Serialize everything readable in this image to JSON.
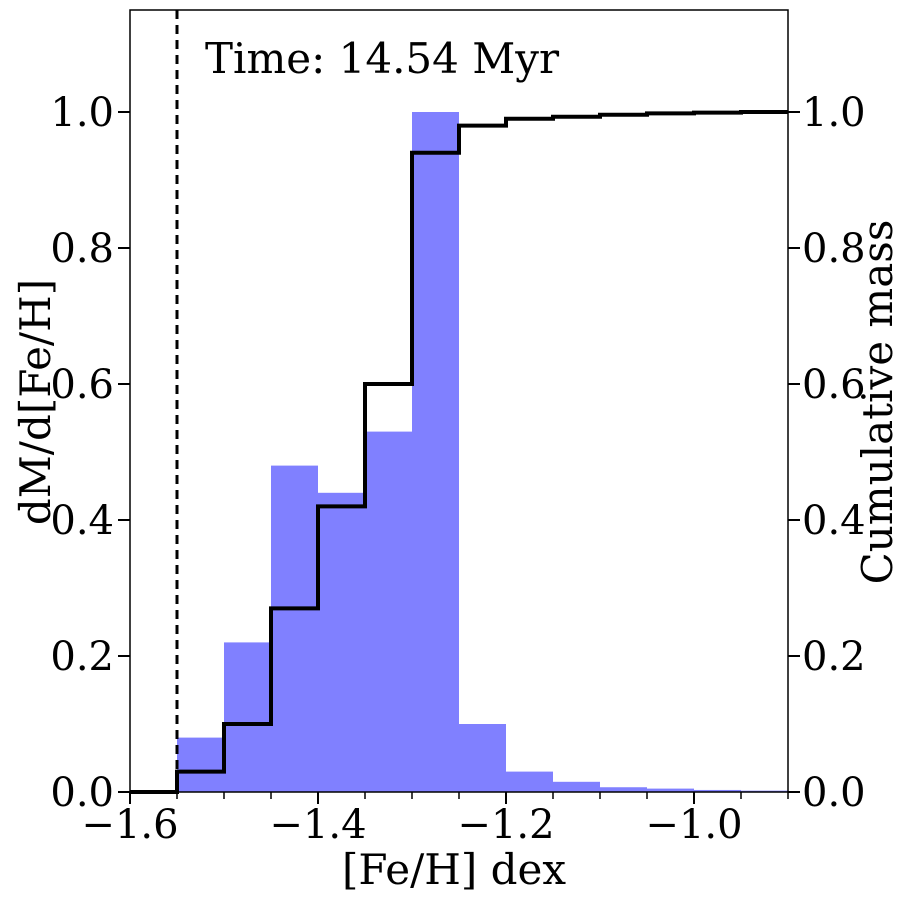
{
  "chart_data": {
    "type": "bar",
    "annotation": "Time: 14.54 Myr",
    "xlabel": "[Fe/H] dex",
    "ylabel": "dM/d[Fe/H]",
    "y2label": "Cumulative mass",
    "xlim": [
      -1.6,
      -0.9
    ],
    "ylim": [
      0,
      1.15
    ],
    "y2lim": [
      0,
      1.15
    ],
    "x_ticks": [
      -1.6,
      -1.4,
      -1.2,
      -1.0
    ],
    "x_tick_labels": [
      "−1.6",
      "−1.4",
      "−1.2",
      "−1.0"
    ],
    "x_minor_ticks": [
      -1.55,
      -1.5,
      -1.45,
      -1.35,
      -1.3,
      -1.25,
      -1.15,
      -1.1,
      -1.05,
      -0.95,
      -0.9
    ],
    "y_ticks": [
      0.0,
      0.2,
      0.4,
      0.6,
      0.8,
      1.0
    ],
    "y_tick_labels": [
      "0.0",
      "0.2",
      "0.4",
      "0.6",
      "0.8",
      "1.0"
    ],
    "y2_ticks": [
      0.0,
      0.2,
      0.4,
      0.6,
      0.8,
      1.0
    ],
    "y2_tick_labels": [
      "0.0",
      "0.2",
      "0.4",
      "0.6",
      "0.8",
      "1.0"
    ],
    "reference_line_x": -1.55,
    "histogram": {
      "color": "#8080ff",
      "bin_edges": [
        -1.6,
        -1.55,
        -1.5,
        -1.45,
        -1.4,
        -1.35,
        -1.3,
        -1.25,
        -1.2,
        -1.15,
        -1.1,
        -1.05,
        -1.0,
        -0.95,
        -0.9
      ],
      "values": [
        0.0,
        0.08,
        0.22,
        0.48,
        0.44,
        0.53,
        1.0,
        0.1,
        0.03,
        0.015,
        0.007,
        0.005,
        0.003,
        0.002
      ]
    },
    "cumulative": {
      "color": "#000000",
      "bin_edges": [
        -1.6,
        -1.55,
        -1.5,
        -1.45,
        -1.4,
        -1.35,
        -1.3,
        -1.25,
        -1.2,
        -1.15,
        -1.1,
        -1.05,
        -1.0,
        -0.95,
        -0.9
      ],
      "values": [
        0.0,
        0.03,
        0.1,
        0.27,
        0.42,
        0.6,
        0.94,
        0.98,
        0.99,
        0.993,
        0.996,
        0.998,
        0.999,
        1.0
      ]
    }
  }
}
